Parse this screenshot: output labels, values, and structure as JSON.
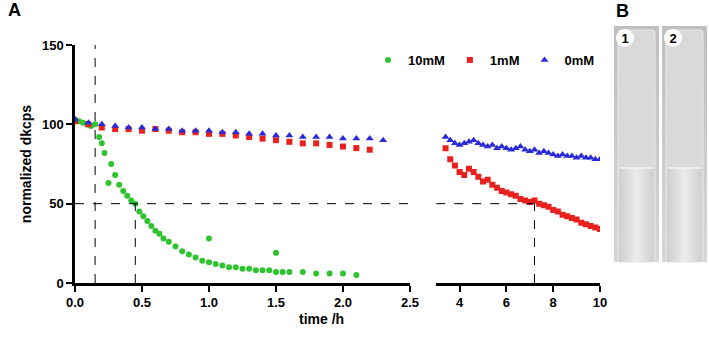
{
  "chart_data": {
    "type": "scatter",
    "x_label": "time /h",
    "y_label": "normalized dkcps",
    "xlim": [
      0,
      2.5
    ],
    "xticks": [
      {
        "value": 0,
        "label": "0.0"
      },
      {
        "value": 0.5,
        "label": "0.5"
      },
      {
        "value": 1,
        "label": "1.0"
      },
      {
        "value": 1.5,
        "label": "1.5"
      },
      {
        "value": 2,
        "label": "2.0"
      },
      {
        "value": 2.5,
        "label": "2.5"
      }
    ],
    "x2lim": [
      3,
      10
    ],
    "x2ticks": [
      4,
      6,
      8,
      10
    ],
    "ylim": [
      0,
      150
    ],
    "yticks": [
      0,
      50,
      100,
      150
    ],
    "grid": false,
    "legend": "top right",
    "reference_lines": [
      {
        "x0": 0.15,
        "x1": 0.15,
        "y0": 0,
        "y1": 150
      },
      {
        "x0": 0,
        "x1": 7.2,
        "y0": 50,
        "y1": 50
      },
      {
        "x0": 0.45,
        "x1": 0.45,
        "y0": 0,
        "y1": 50
      },
      {
        "x0": 7.2,
        "x1": 7.2,
        "y0": 0,
        "y1": 50
      }
    ],
    "series": [
      {
        "name": "10mM",
        "color": "#2fc42f",
        "marker": "circle",
        "x": [
          0.0,
          0.03,
          0.06,
          0.09,
          0.12,
          0.15,
          0.18,
          0.2,
          0.22,
          0.25,
          0.27,
          0.3,
          0.33,
          0.36,
          0.39,
          0.42,
          0.45,
          0.48,
          0.51,
          0.54,
          0.57,
          0.6,
          0.63,
          0.66,
          0.7,
          0.75,
          0.8,
          0.85,
          0.9,
          0.95,
          1.0,
          1.0,
          1.05,
          1.1,
          1.15,
          1.2,
          1.25,
          1.3,
          1.35,
          1.4,
          1.45,
          1.5,
          1.5,
          1.55,
          1.6,
          1.7,
          1.8,
          1.9,
          2.0,
          2.1
        ],
        "values": [
          103,
          102,
          101,
          100,
          99,
          100,
          92,
          88,
          82,
          63,
          75,
          68,
          62,
          58,
          55,
          52,
          50,
          45,
          42,
          39,
          36,
          33,
          31,
          28,
          26,
          23,
          20,
          18,
          16,
          14,
          28,
          13,
          12,
          11,
          10,
          10,
          9,
          9,
          8,
          8,
          8,
          19,
          7,
          7,
          7,
          7,
          6,
          6,
          6,
          5
        ]
      },
      {
        "name": "1mM",
        "color": "#e8201e",
        "marker": "square",
        "x": [
          0,
          0.1,
          0.2,
          0.3,
          0.4,
          0.5,
          0.6,
          0.7,
          0.8,
          0.9,
          1.0,
          1.1,
          1.2,
          1.3,
          1.4,
          1.5,
          1.6,
          1.7,
          1.8,
          1.9,
          2.0,
          2.1,
          2.2,
          3.4,
          3.6,
          3.8,
          4.0,
          4.2,
          4.4,
          4.6,
          4.8,
          5.0,
          5.2,
          5.4,
          5.6,
          5.8,
          6.0,
          6.2,
          6.4,
          6.6,
          6.8,
          7.0,
          7.2,
          7.4,
          7.6,
          7.8,
          8.0,
          8.2,
          8.4,
          8.6,
          8.8,
          9.0,
          9.2,
          9.4,
          9.6,
          9.8,
          10.0
        ],
        "values": [
          102,
          100,
          98,
          97,
          97,
          96,
          97,
          96,
          95,
          95,
          94,
          94,
          93,
          92,
          91,
          90,
          89,
          88,
          88,
          87,
          86,
          85,
          84,
          85,
          78,
          74,
          70,
          68,
          72,
          70,
          67,
          64,
          65,
          62,
          60,
          58,
          57,
          56,
          55,
          53,
          52,
          51,
          52,
          50,
          49,
          48,
          46,
          45,
          43,
          42,
          41,
          40,
          38,
          37,
          36,
          35,
          34
        ]
      },
      {
        "name": "0mM",
        "color": "#2a2ad8",
        "marker": "triangle-up",
        "x": [
          0,
          0.1,
          0.2,
          0.3,
          0.4,
          0.5,
          0.6,
          0.7,
          0.8,
          0.9,
          1.0,
          1.1,
          1.2,
          1.3,
          1.4,
          1.5,
          1.6,
          1.7,
          1.8,
          1.9,
          2.0,
          2.1,
          2.2,
          2.3,
          3.4,
          3.6,
          3.8,
          4.0,
          4.2,
          4.4,
          4.6,
          4.8,
          5.0,
          5.2,
          5.4,
          5.6,
          5.8,
          6.0,
          6.2,
          6.4,
          6.6,
          6.8,
          7.0,
          7.2,
          7.4,
          7.6,
          7.8,
          8.0,
          8.2,
          8.4,
          8.6,
          8.8,
          9.0,
          9.2,
          9.4,
          9.6,
          9.8,
          10.0
        ],
        "values": [
          103,
          101,
          100,
          99,
          98,
          98,
          97,
          97,
          96,
          96,
          96,
          95,
          95,
          94,
          94,
          93,
          93,
          92,
          92,
          92,
          91,
          91,
          91,
          90,
          92,
          90,
          88,
          87,
          88,
          89,
          90,
          88,
          87,
          86,
          87,
          85,
          86,
          85,
          84,
          85,
          86,
          84,
          83,
          84,
          82,
          83,
          82,
          81,
          80,
          81,
          80,
          80,
          79,
          80,
          79,
          79,
          78,
          78
        ]
      }
    ]
  },
  "panel_labels": [
    "A",
    "B"
  ],
  "tube_labels": [
    "1",
    "2"
  ]
}
